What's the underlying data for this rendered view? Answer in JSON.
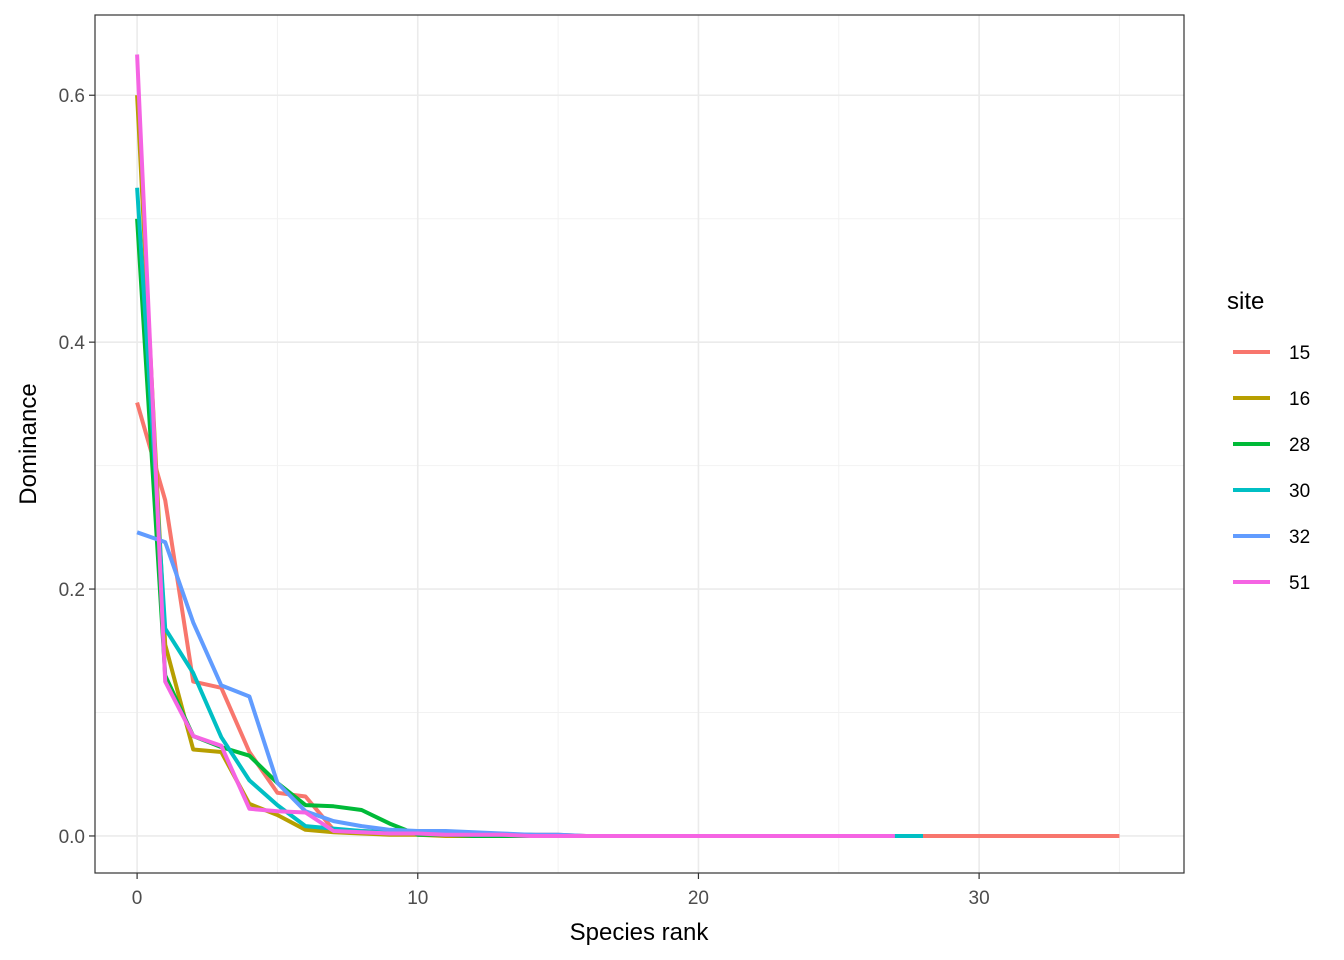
{
  "chart_data": {
    "type": "line",
    "xlabel": "Species rank",
    "ylabel": "Dominance",
    "xlim": [
      -1.5,
      37.3
    ],
    "ylim": [
      -0.03,
      0.665
    ],
    "x_ticks": [
      0,
      10,
      20,
      30
    ],
    "y_ticks": [
      0.0,
      0.2,
      0.4,
      0.6
    ],
    "x_tick_labels": [
      "0",
      "10",
      "20",
      "30"
    ],
    "y_tick_labels": [
      "0.0",
      "0.2",
      "0.4",
      "0.6"
    ],
    "grid": true,
    "legend": {
      "title": "site",
      "position": "right"
    },
    "series": [
      {
        "name": "15",
        "color": "#F8766D",
        "x": [
          0,
          1,
          2,
          3,
          4,
          5,
          6,
          7,
          8,
          9,
          10,
          11,
          12,
          13,
          14,
          15,
          16,
          17,
          18,
          19,
          20,
          21,
          22,
          23,
          24,
          25,
          26,
          27,
          28,
          29,
          30,
          31,
          32,
          33,
          34,
          35
        ],
        "y": [
          0.351,
          0.272,
          0.125,
          0.12,
          0.068,
          0.035,
          0.032,
          0.005,
          0.004,
          0.003,
          0.002,
          0.002,
          0.001,
          0.001,
          0.001,
          0.001,
          0,
          0,
          0,
          0,
          0,
          0,
          0,
          0,
          0,
          0,
          0,
          0,
          0,
          0,
          0,
          0,
          0,
          0,
          0,
          0
        ]
      },
      {
        "name": "16",
        "color": "#B79F00",
        "x": [
          0,
          1,
          2,
          3,
          4,
          5,
          6,
          7,
          8,
          9,
          10,
          11,
          12,
          13,
          14,
          15,
          16,
          17
        ],
        "y": [
          0.6,
          0.155,
          0.07,
          0.068,
          0.026,
          0.017,
          0.005,
          0.003,
          0.002,
          0.001,
          0.001,
          0,
          0,
          0,
          0,
          0,
          0,
          0
        ]
      },
      {
        "name": "28",
        "color": "#00BA38",
        "x": [
          0,
          1,
          2,
          3,
          4,
          5,
          6,
          7,
          8,
          9,
          10,
          11,
          12,
          13,
          14,
          15,
          16,
          17
        ],
        "y": [
          0.5,
          0.13,
          0.081,
          0.072,
          0.065,
          0.043,
          0.025,
          0.024,
          0.021,
          0.01,
          0.001,
          0.001,
          0,
          0,
          0,
          0,
          0,
          0
        ]
      },
      {
        "name": "30",
        "color": "#00BFC4",
        "x": [
          0,
          1,
          2,
          3,
          4,
          5,
          6,
          7,
          8,
          9,
          10,
          11,
          12,
          13,
          14,
          15,
          16,
          17,
          18,
          19,
          20,
          21,
          22,
          23,
          24,
          25,
          26,
          27,
          28
        ],
        "y": [
          0.525,
          0.168,
          0.132,
          0.08,
          0.045,
          0.025,
          0.008,
          0.006,
          0.004,
          0.003,
          0.002,
          0.002,
          0.001,
          0.001,
          0.001,
          0,
          0,
          0,
          0,
          0,
          0,
          0,
          0,
          0,
          0,
          0,
          0,
          0,
          0
        ]
      },
      {
        "name": "32",
        "color": "#619CFF",
        "x": [
          0,
          1,
          2,
          3,
          4,
          5,
          6,
          7,
          8,
          9,
          10,
          11,
          12,
          13,
          14,
          15,
          16,
          17
        ],
        "y": [
          0.246,
          0.238,
          0.173,
          0.122,
          0.113,
          0.043,
          0.02,
          0.012,
          0.008,
          0.005,
          0.004,
          0.004,
          0.003,
          0.002,
          0.001,
          0.001,
          0,
          0
        ]
      },
      {
        "name": "51",
        "color": "#F564E3",
        "x": [
          0,
          1,
          2,
          3,
          4,
          5,
          6,
          7,
          8,
          9,
          10,
          11,
          12,
          13,
          14,
          15,
          16,
          17,
          18,
          19,
          20,
          21,
          22,
          23,
          24,
          25,
          26,
          27
        ],
        "y": [
          0.633,
          0.125,
          0.081,
          0.073,
          0.022,
          0.02,
          0.019,
          0.004,
          0.003,
          0.002,
          0.002,
          0.001,
          0.001,
          0.001,
          0,
          0,
          0,
          0,
          0,
          0,
          0,
          0,
          0,
          0,
          0,
          0,
          0,
          0
        ]
      }
    ]
  }
}
